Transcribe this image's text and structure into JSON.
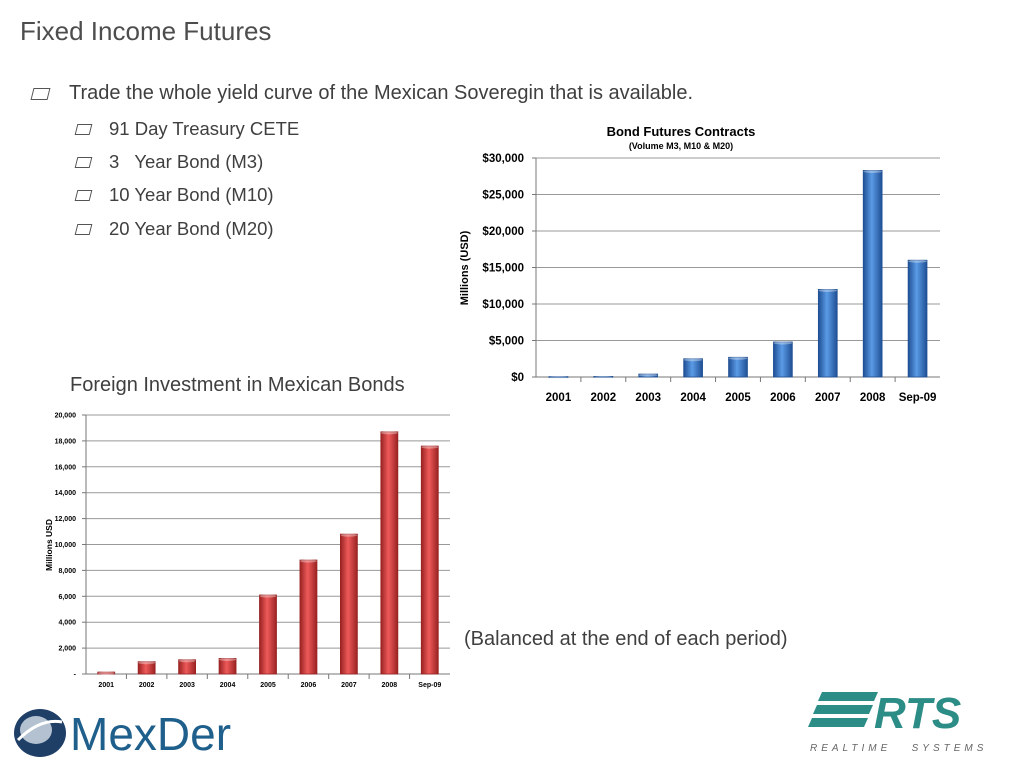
{
  "slide": {
    "title": "Fixed Income Futures",
    "bullets": [
      {
        "text": "Trade the whole yield curve of the Mexican Soveregin that is available.",
        "level": 1
      },
      {
        "text": "91 Day Treasury CETE",
        "level": 2
      },
      {
        "text": "3   Year Bond (M3)",
        "level": 2
      },
      {
        "text": "10 Year Bond (M10)",
        "level": 2
      },
      {
        "text": "20 Year Bond (M20)",
        "level": 2
      }
    ],
    "foreign_title": "Foreign Investment in Mexican Bonds",
    "balanced_note": "(Balanced at the end of each period)"
  },
  "logos": {
    "mexder": {
      "text": "MexDer",
      "color": "#1f5f8b"
    },
    "rts": {
      "text": "RTS",
      "tagline": "REALTIME   SYSTEMS",
      "color": "#2c8c86"
    }
  },
  "chart_data": [
    {
      "type": "bar",
      "title": "Bond Futures Contracts",
      "subtitle": "(Volume M3, M10 & M20)",
      "xlabel": "",
      "ylabel": "Millions (USD)",
      "categories": [
        "2001",
        "2002",
        "2003",
        "2004",
        "2005",
        "2006",
        "2007",
        "2008",
        "Sep-09"
      ],
      "values": [
        50,
        80,
        400,
        2500,
        2700,
        4800,
        12000,
        28300,
        16000
      ],
      "ylim": [
        0,
        30000
      ],
      "yticks": [
        0,
        5000,
        10000,
        15000,
        20000,
        25000,
        30000
      ],
      "ytick_labels": [
        "$0",
        "$5,000",
        "$10,000",
        "$15,000",
        "$20,000",
        "$25,000",
        "$30,000"
      ],
      "grid": true,
      "bar_color": "#3f7fd0",
      "bar_dark": "#1f4f94"
    },
    {
      "type": "bar",
      "title": "",
      "xlabel": "",
      "ylabel": "Millions  USD",
      "categories": [
        "2001",
        "2002",
        "2003",
        "2004",
        "2005",
        "2006",
        "2007",
        "2008",
        "Sep-09"
      ],
      "values": [
        150,
        950,
        1100,
        1200,
        6100,
        8800,
        10800,
        18700,
        17600
      ],
      "ylim": [
        0,
        20000
      ],
      "yticks": [
        0,
        2000,
        4000,
        6000,
        8000,
        10000,
        12000,
        14000,
        16000,
        18000,
        20000
      ],
      "ytick_labels": [
        "-",
        "2,000",
        "4,000",
        "6,000",
        "8,000",
        "10,000",
        "12,000",
        "14,000",
        "16,000",
        "18,000",
        "20,000"
      ],
      "grid": true,
      "bar_color": "#d94040",
      "bar_dark": "#9a2222"
    }
  ]
}
